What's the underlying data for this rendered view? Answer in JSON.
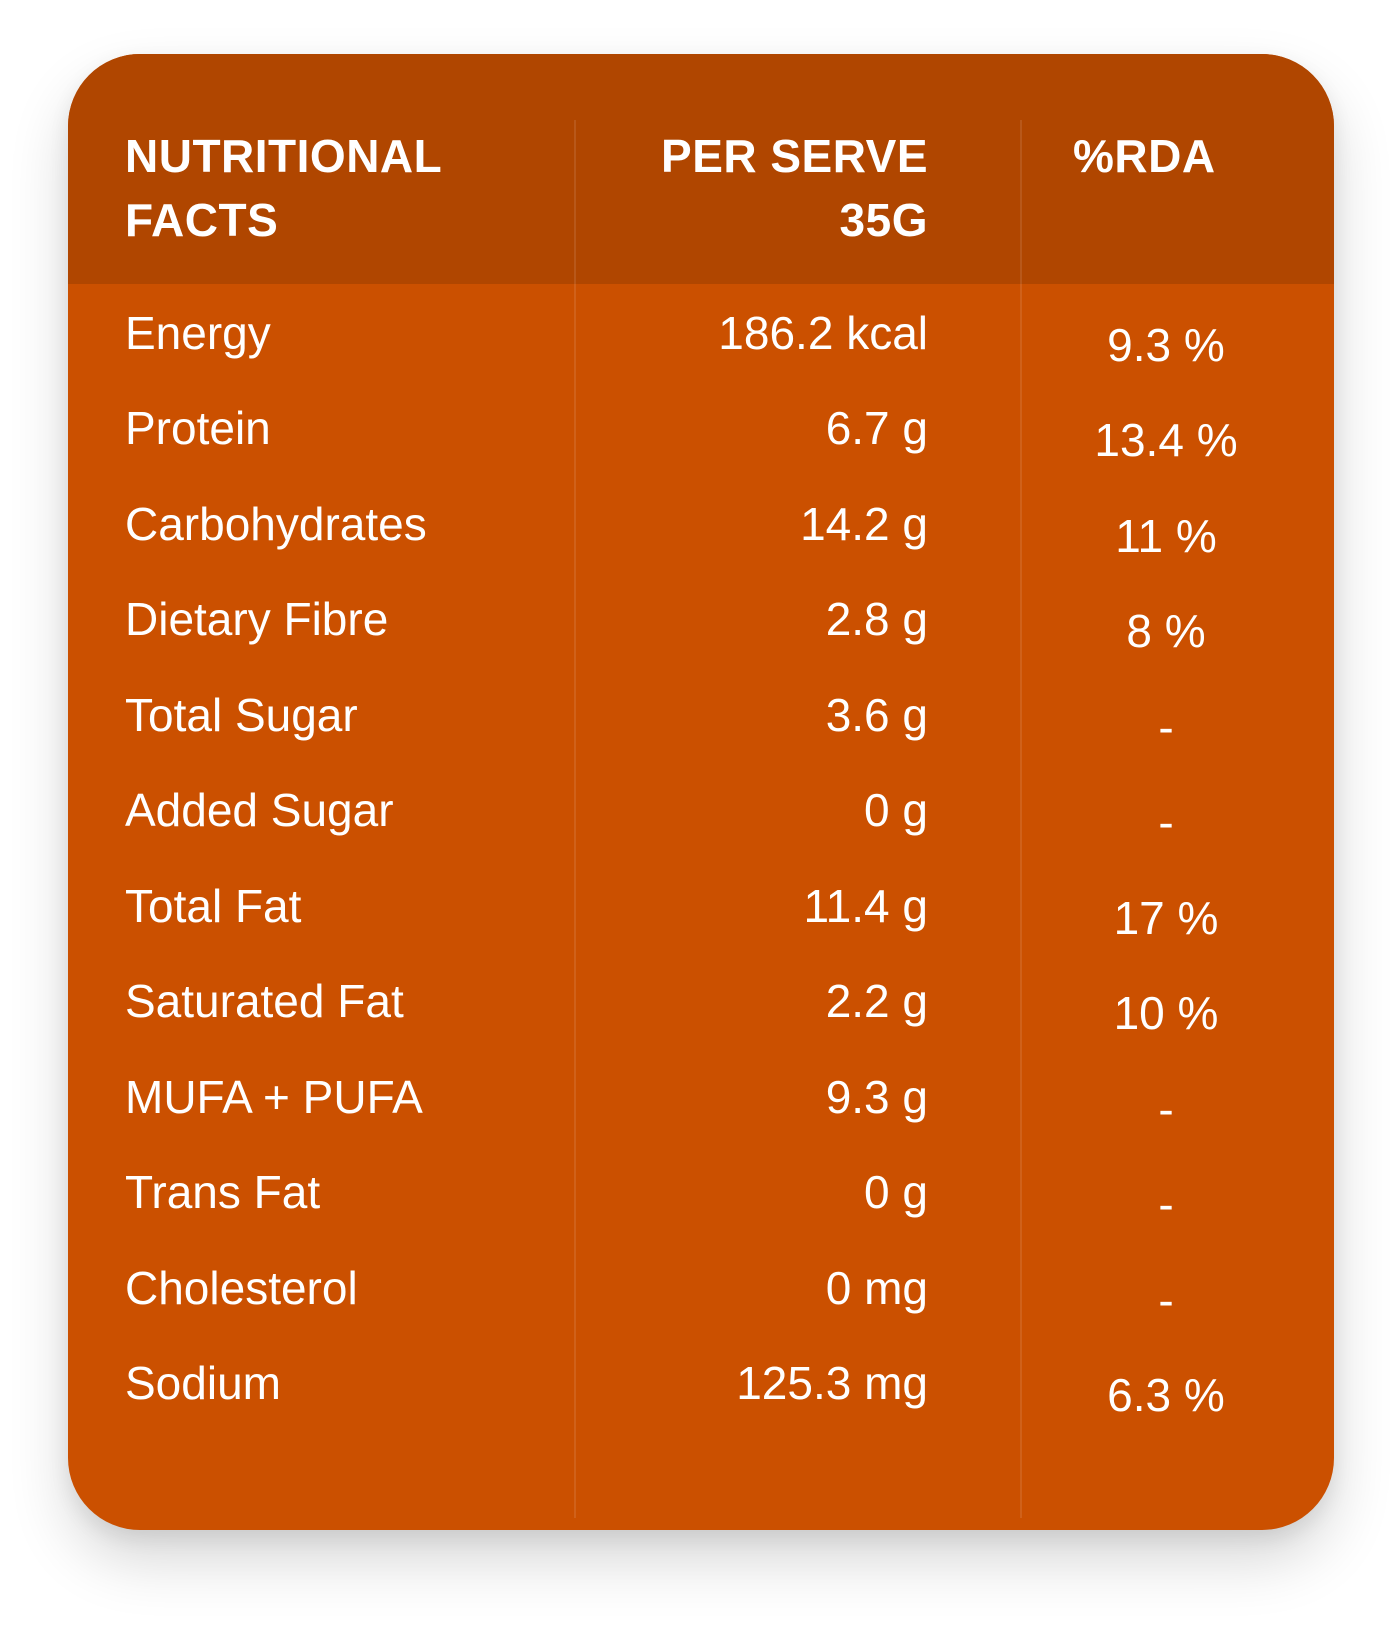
{
  "table": {
    "header": {
      "col1_line1": "NUTRITIONAL",
      "col1_line2": "FACTS",
      "col2_line1": "PER SERVE",
      "col2_line2": "35G",
      "col3": "%RDA"
    },
    "rows": [
      {
        "name": "Energy",
        "value": "186.2 kcal",
        "rda": "9.3 %"
      },
      {
        "name": "Protein",
        "value": "6.7 g",
        "rda": "13.4 %"
      },
      {
        "name": "Carbohydrates",
        "value": "14.2 g",
        "rda": "11 %"
      },
      {
        "name": "Dietary Fibre",
        "value": "2.8 g",
        "rda": "8 %"
      },
      {
        "name": "Total Sugar",
        "value": "3.6 g",
        "rda": "-"
      },
      {
        "name": "Added Sugar",
        "value": "0 g",
        "rda": "-"
      },
      {
        "name": "Total Fat",
        "value": "11.4 g",
        "rda": "17 %"
      },
      {
        "name": "Saturated Fat",
        "value": "2.2 g",
        "rda": "10 %"
      },
      {
        "name": "MUFA + PUFA",
        "value": "9.3 g",
        "rda": "-"
      },
      {
        "name": "Trans Fat",
        "value": "0 g",
        "rda": "-"
      },
      {
        "name": "Cholesterol",
        "value": "0 mg",
        "rda": "-"
      },
      {
        "name": "Sodium",
        "value": "125.3 mg",
        "rda": "6.3 %"
      }
    ]
  },
  "colors": {
    "body": "#cb5000",
    "header": "#b04600",
    "text": "#ffffff"
  }
}
